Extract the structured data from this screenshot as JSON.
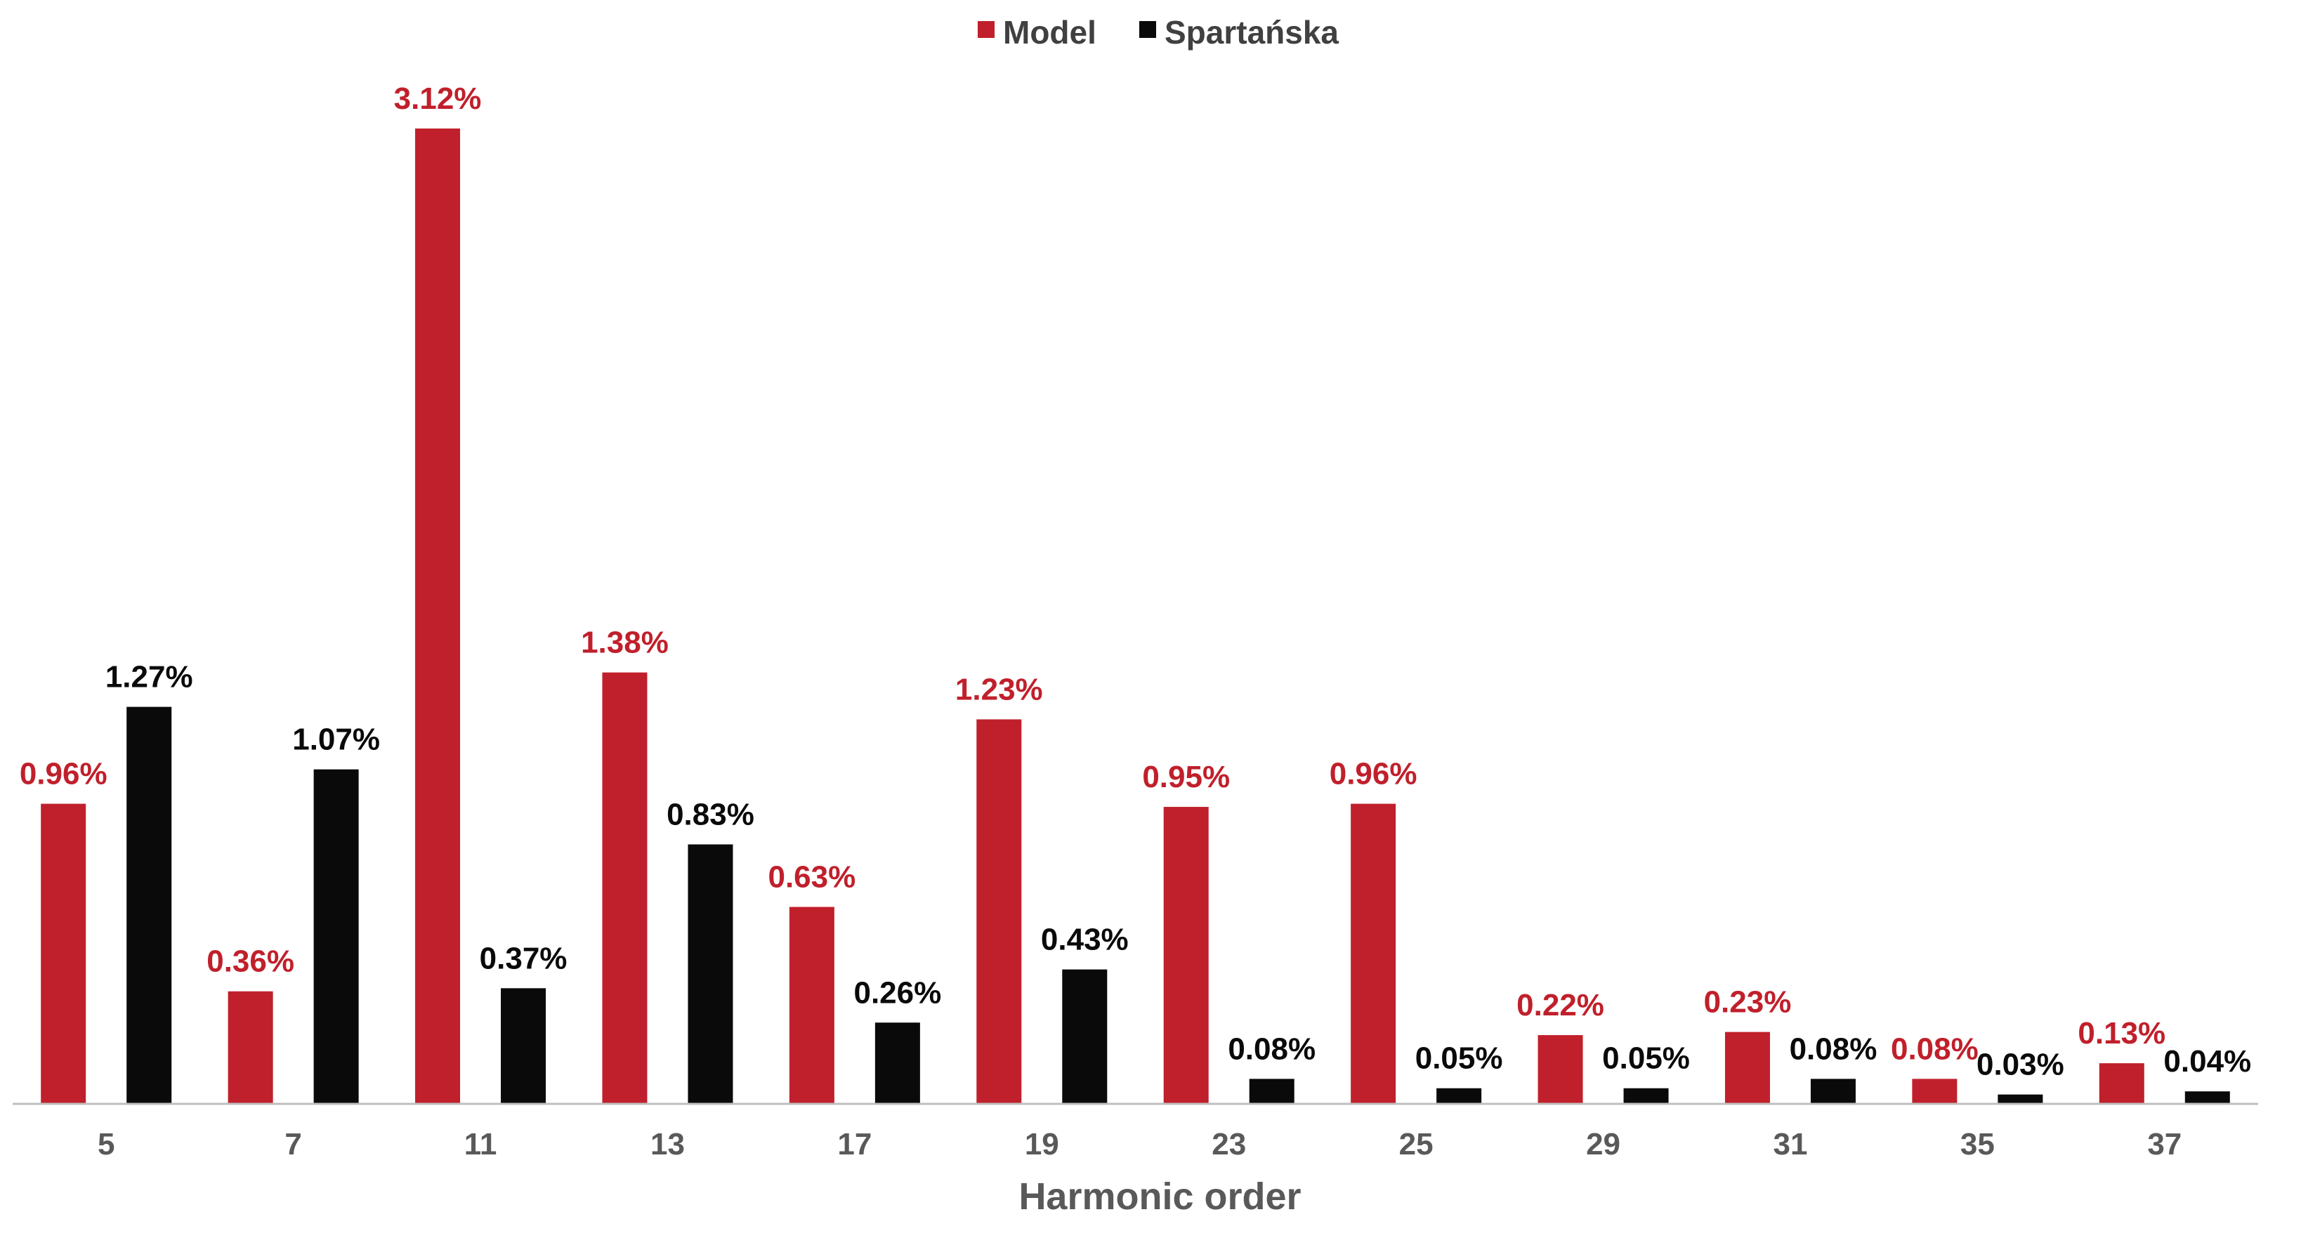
{
  "chart_data": {
    "type": "bar",
    "title": "",
    "xlabel": "Harmonic order",
    "ylabel": "",
    "ylim": [
      0,
      3.12
    ],
    "grid": false,
    "legend_position": "top-center",
    "categories": [
      "5",
      "7",
      "11",
      "13",
      "17",
      "19",
      "23",
      "25",
      "29",
      "31",
      "35",
      "37"
    ],
    "series": [
      {
        "name": "Model",
        "color": "#c0202b",
        "values": [
          0.96,
          0.36,
          3.12,
          1.38,
          0.63,
          1.23,
          0.95,
          0.96,
          0.22,
          0.23,
          0.08,
          0.13
        ],
        "labels": [
          "0.96%",
          "0.36%",
          "3.12%",
          "1.38%",
          "0.63%",
          "1.23%",
          "0.95%",
          "0.96%",
          "0.22%",
          "0.23%",
          "0.08%",
          "0.13%"
        ]
      },
      {
        "name": "Spartańska",
        "color": "#0a0a0a",
        "values": [
          1.27,
          1.07,
          0.37,
          0.83,
          0.26,
          0.43,
          0.08,
          0.05,
          0.05,
          0.08,
          0.03,
          0.04
        ],
        "labels": [
          "1.27%",
          "1.07%",
          "0.37%",
          "0.83%",
          "0.26%",
          "0.43%",
          "0.08%",
          "0.05%",
          "0.05%",
          "0.08%",
          "0.03%",
          "0.04%"
        ]
      }
    ]
  }
}
